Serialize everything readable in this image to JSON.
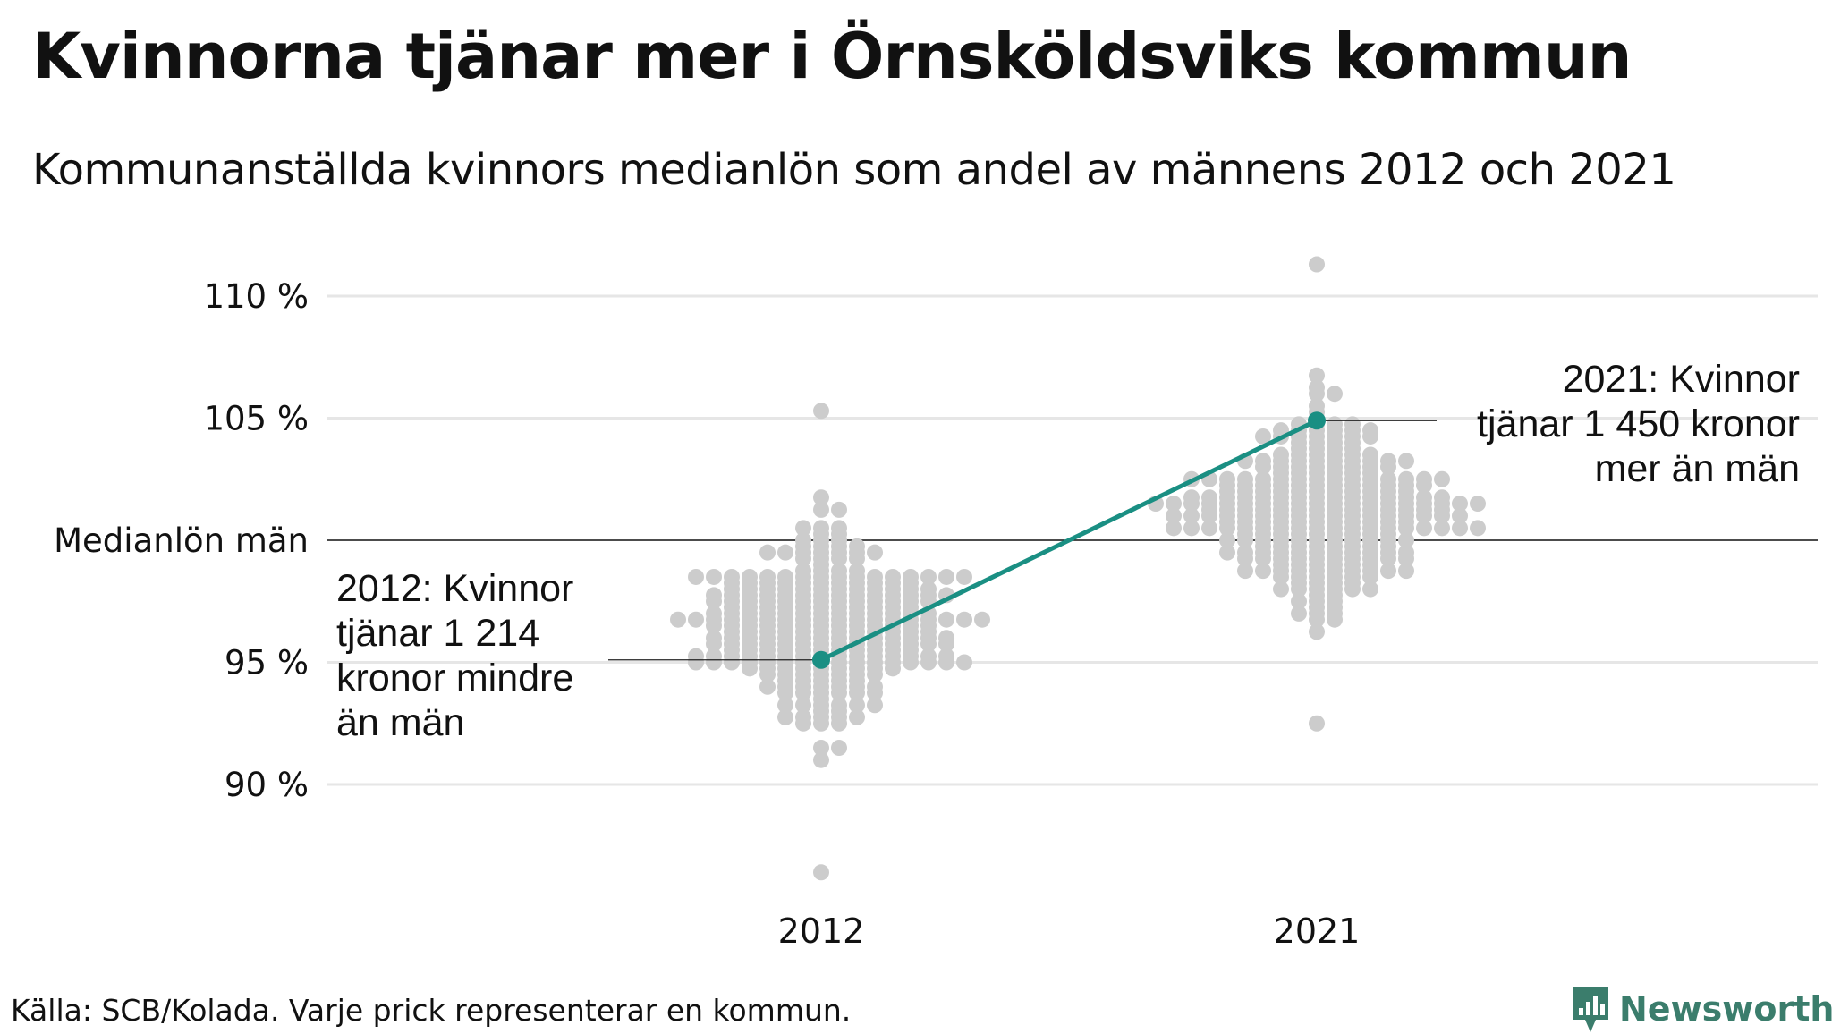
{
  "title": "Kvinnorna tjänar mer i Örnsköldsviks kommun",
  "subtitle": "Kommunanställda kvinnors medianlön som andel av männens 2012 och 2021",
  "source": "Källa: SCB/Kolada. Varje prick representerar en kommun.",
  "brand": {
    "name": "Newsworthy",
    "icon": "newsworthy-logo-icon",
    "color": "#3b7d6c"
  },
  "colors": {
    "dots": "#cccccc",
    "highlight": "#1a8f83",
    "gridline": "#e6e6e6",
    "reference": "#111111"
  },
  "chart_data": {
    "type": "scatter",
    "title": "Kvinnorna tjänar mer i Örnsköldsviks kommun",
    "subtitle": "Kommunanställda kvinnors medianlön som andel av männens 2012 och 2021",
    "categories": [
      "2012",
      "2021"
    ],
    "ylim": [
      86,
      112
    ],
    "y_ticks": [
      {
        "value": 90,
        "label": "90 %"
      },
      {
        "value": 95,
        "label": "95 %"
      },
      {
        "value": 100,
        "label": "Medianlön män"
      },
      {
        "value": 105,
        "label": "105 %"
      },
      {
        "value": 110,
        "label": "110 %"
      }
    ],
    "grid": true,
    "reference_line": 100,
    "highlight": {
      "values": [
        95.1,
        104.9
      ],
      "annotations": [
        [
          "2012: Kvinnor",
          "tjänar 1 214",
          "kronor mindre",
          "än män"
        ],
        [
          "2021: Kvinnor",
          "tjänar 1 450 kronor",
          "mer än män"
        ]
      ]
    },
    "distributions": [
      {
        "name": "2012",
        "median": 96.6,
        "count": 290,
        "spread": 1.95,
        "min": 86.4,
        "max": 105.3
      },
      {
        "name": "2021",
        "median": 101.3,
        "count": 290,
        "spread": 2.05,
        "min": 92.5,
        "max": 111.3
      }
    ]
  }
}
